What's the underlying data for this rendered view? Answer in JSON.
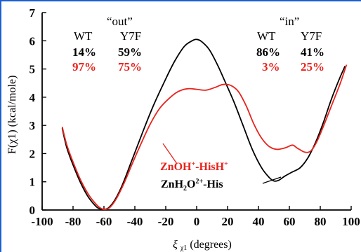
{
  "chart_data": {
    "type": "line",
    "xlabel": "ξχ1 (degrees)",
    "ylabel": "F(χ1) (kcal/mole)",
    "xlim": [
      -100,
      100
    ],
    "ylim": [
      0,
      7
    ],
    "x_ticks": [
      "-100",
      "-80",
      "-60",
      "-40",
      "-20",
      "0",
      "20",
      "40",
      "60",
      "80",
      "100"
    ],
    "y_ticks": [
      "0",
      "1",
      "2",
      "3",
      "4",
      "5",
      "6",
      "7"
    ],
    "grid": false,
    "series": [
      {
        "name": "ZnH2O2+-His",
        "color": "#000000",
        "x": [
          -87,
          -84,
          -80,
          -75,
          -70,
          -65,
          -62,
          -60,
          -57,
          -53,
          -48,
          -42,
          -35,
          -28,
          -20,
          -14,
          -8,
          -3,
          0,
          3,
          8,
          13,
          18,
          24,
          30,
          36,
          42,
          47,
          50,
          53,
          57,
          62,
          67,
          72,
          77,
          82,
          87,
          92,
          96
        ],
        "y": [
          2.9,
          2.2,
          1.6,
          0.95,
          0.45,
          0.12,
          0.03,
          0.02,
          0.08,
          0.35,
          0.9,
          1.75,
          2.75,
          3.7,
          4.65,
          5.3,
          5.8,
          6.0,
          6.05,
          5.98,
          5.7,
          5.2,
          4.6,
          3.85,
          3.0,
          2.15,
          1.5,
          1.15,
          1.03,
          1.05,
          1.2,
          1.35,
          1.5,
          1.85,
          2.4,
          3.1,
          3.9,
          4.6,
          5.1
        ]
      },
      {
        "name": "ZnOH+-HisH+",
        "color": "#e8231c",
        "x": [
          -87,
          -84,
          -80,
          -75,
          -70,
          -65,
          -62,
          -59,
          -56,
          -52,
          -47,
          -42,
          -36,
          -30,
          -24,
          -18,
          -12,
          -6,
          0,
          6,
          12,
          17,
          22,
          27,
          32,
          37,
          42,
          47,
          52,
          57,
          62,
          65,
          70,
          74,
          78,
          83,
          88,
          93,
          97
        ],
        "y": [
          2.95,
          2.3,
          1.7,
          1.05,
          0.55,
          0.2,
          0.06,
          0.02,
          0.1,
          0.4,
          0.95,
          1.6,
          2.35,
          3.05,
          3.6,
          3.95,
          4.2,
          4.3,
          4.28,
          4.25,
          4.35,
          4.45,
          4.42,
          4.2,
          3.7,
          3.05,
          2.55,
          2.25,
          2.15,
          2.2,
          2.3,
          2.2,
          2.05,
          2.1,
          2.45,
          3.1,
          3.8,
          4.5,
          5.15
        ]
      }
    ],
    "legend_labels": {
      "zn_oh_main": "ZnOH",
      "zn_oh_sup1": "+",
      "zn_oh_his": "-HisH",
      "zn_oh_sup2": "+",
      "zn_h2o_main": "ZnH",
      "zn_h2o_sub": "2",
      "zn_h2o_o": "O",
      "zn_h2o_sup": "2+",
      "zn_h2o_his": "-His"
    },
    "annotations": {
      "out_title": "“out”",
      "in_title": "“in”",
      "wt_label": "WT",
      "y7f_label": "Y7F",
      "out_wt_black": "14%",
      "out_y7f_black": "59%",
      "out_wt_red": "97%",
      "out_y7f_red": "75%",
      "in_wt_black": "86%",
      "in_y7f_black": "41%",
      "in_wt_red": "3%",
      "in_y7f_red": "25%"
    },
    "axis_title_parts": {
      "y_main": "F(χ1) (kcal/mole)",
      "x_xi": "ξ",
      "x_sub": "χ1",
      "x_rest": " (degrees)"
    },
    "colors": {
      "black_series": "#000000",
      "red_series": "#e8231c",
      "frame": "#1a5fd6"
    }
  }
}
